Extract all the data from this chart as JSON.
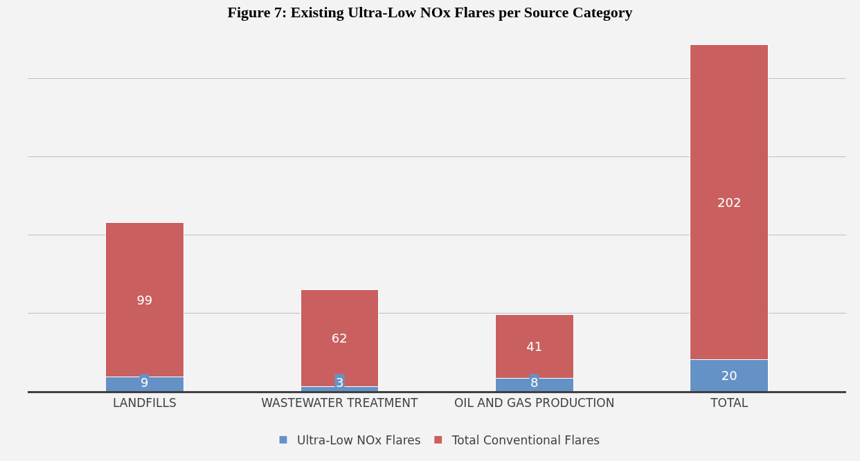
{
  "chart_data": {
    "type": "bar",
    "title": "Figure 7: Existing Ultra-Low NOx Flares per Source Category",
    "categories": [
      "LANDFILLS",
      "WASTEWATER TREATMENT",
      "OIL AND GAS PRODUCTION",
      "TOTAL"
    ],
    "stacked": true,
    "data_labels": true,
    "tick_labels": "x",
    "grid": "y",
    "legend": "bottom",
    "series": [
      {
        "name": "Ultra-Low NOx Flares",
        "color": "#6592c6",
        "values": [
          9,
          3,
          8,
          20
        ]
      },
      {
        "name": "Total Conventional Flares",
        "color": "#c9605f",
        "values": [
          99,
          62,
          41,
          202
        ]
      }
    ]
  }
}
